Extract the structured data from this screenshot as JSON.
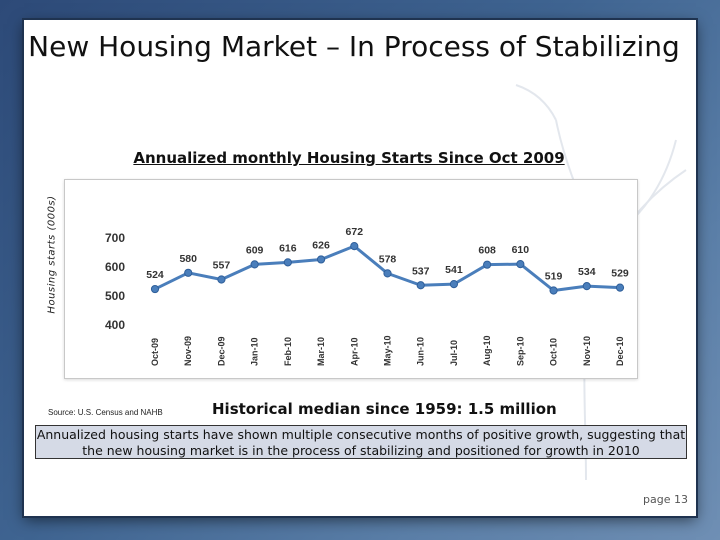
{
  "slide": {
    "title": "New Housing Market – In Process of Stabilizing",
    "median_note": "Historical median since 1959: 1.5 million",
    "source": "Source: U.S. Census and NAHB",
    "callout": "Annualized housing starts have shown multiple consecutive months of positive growth, suggesting that the new housing market is in the process of stabilizing and positioned for growth in 2010",
    "page_number": "page 13"
  },
  "chart_data": {
    "type": "line",
    "title": "Annualized monthly Housing Starts Since Oct 2009",
    "xlabel": "",
    "ylabel": "Housing starts (000s)",
    "categories": [
      "Oct-09",
      "Nov-09",
      "Dec-09",
      "Jan-10",
      "Feb-10",
      "Mar-10",
      "Apr-10",
      "May-10",
      "Jun-10",
      "Jul-10",
      "Aug-10",
      "Sep-10",
      "Oct-10",
      "Nov-10",
      "Dec-10"
    ],
    "values": [
      524,
      580,
      557,
      609,
      616,
      626,
      672,
      578,
      537,
      541,
      608,
      610,
      519,
      534,
      529
    ],
    "ylim": [
      400,
      700
    ],
    "yticks": [
      400,
      500,
      600,
      700
    ],
    "grid": false,
    "legend": "none",
    "color": "#4a7ebb"
  }
}
